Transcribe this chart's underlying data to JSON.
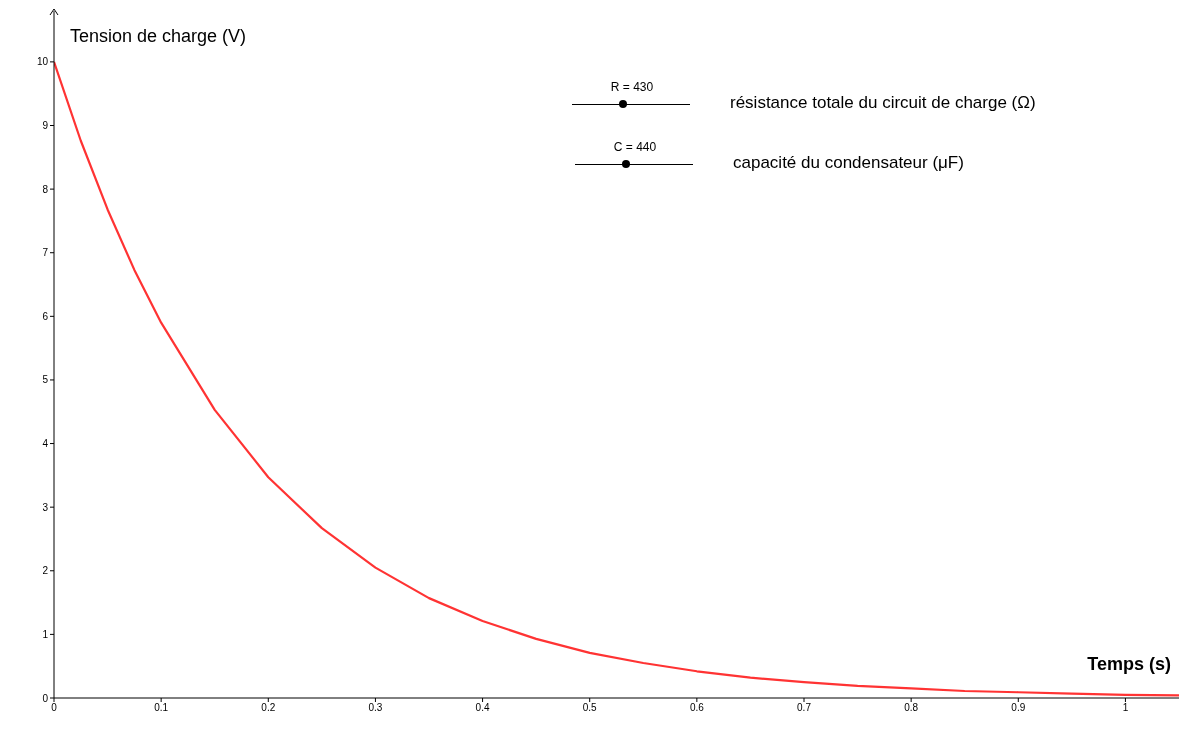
{
  "chart_data": {
    "type": "line",
    "xlabel": "Temps (s)",
    "ylabel": "Tension de charge (V)",
    "xlim": [
      0,
      1.05
    ],
    "ylim": [
      0,
      10.8
    ],
    "xticks": [
      0,
      0.1,
      0.2,
      0.3,
      0.4,
      0.5,
      0.6,
      0.7,
      0.8,
      0.9,
      1
    ],
    "yticks": [
      0,
      1,
      2,
      3,
      4,
      5,
      6,
      7,
      8,
      9,
      10
    ],
    "series": [
      {
        "color": "#ff3333",
        "x": [
          0,
          0.025,
          0.05,
          0.075,
          0.1,
          0.15,
          0.2,
          0.25,
          0.3,
          0.35,
          0.4,
          0.45,
          0.5,
          0.55,
          0.6,
          0.65,
          0.7,
          0.75,
          0.8,
          0.85,
          0.9,
          0.95,
          1,
          1.05
        ],
        "values": [
          10,
          8.76,
          7.68,
          6.73,
          5.9,
          4.53,
          3.47,
          2.67,
          2.05,
          1.57,
          1.21,
          0.93,
          0.71,
          0.55,
          0.42,
          0.32,
          0.25,
          0.19,
          0.15,
          0.11,
          0.09,
          0.07,
          0.05,
          0.04
        ]
      }
    ],
    "annotations": [
      "R = 430",
      "résistance totale du circuit de charge (Ω)",
      "C = 440",
      "capacité du condensateur (μF)"
    ]
  }
}
